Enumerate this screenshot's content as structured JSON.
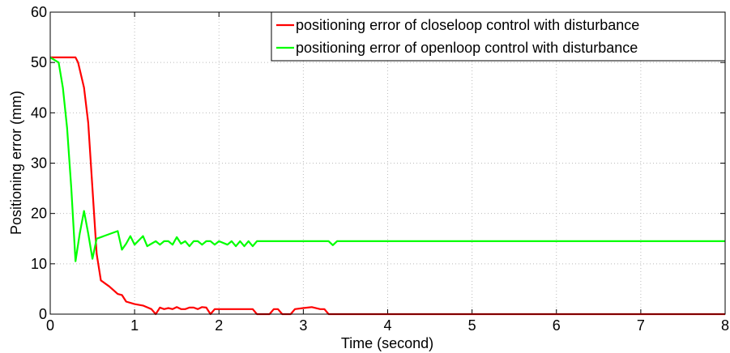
{
  "chart_data": {
    "type": "line",
    "xlabel": "Time (second)",
    "ylabel": "Positioning error (mm)",
    "xlim": [
      0,
      8
    ],
    "ylim": [
      0,
      60
    ],
    "xticks": [
      0,
      1,
      2,
      3,
      4,
      5,
      6,
      7,
      8
    ],
    "yticks": [
      0,
      10,
      20,
      30,
      40,
      50,
      60
    ],
    "grid": true,
    "legend": "northeast",
    "series": [
      {
        "name": "positioning error of closeloop control with disturbance",
        "color": "#ff0000",
        "x": [
          0,
          0.3,
          0.33,
          0.4,
          0.45,
          0.5,
          0.55,
          0.6,
          0.7,
          0.8,
          0.85,
          0.9,
          1.0,
          1.1,
          1.2,
          1.25,
          1.3,
          1.35,
          1.4,
          1.45,
          1.5,
          1.55,
          1.6,
          1.65,
          1.7,
          1.75,
          1.8,
          1.85,
          1.9,
          1.95,
          2.4,
          2.45,
          2.6,
          2.65,
          2.7,
          2.75,
          2.85,
          2.9,
          3.0,
          3.1,
          3.2,
          3.25,
          3.3,
          8
        ],
        "values": [
          51,
          51,
          50,
          45,
          38,
          25,
          12,
          6.7,
          5.5,
          4,
          3.8,
          2.5,
          2,
          1.7,
          1,
          0,
          1.3,
          1,
          1.2,
          1,
          1.4,
          1,
          1,
          1.3,
          1.3,
          1,
          1.4,
          1.3,
          0,
          1,
          1,
          0,
          0,
          1,
          1,
          0,
          0,
          1,
          1.2,
          1.4,
          1,
          1,
          0,
          0
        ]
      },
      {
        "name": "positioning error of openloop control with disturbance",
        "color": "#00ff00",
        "x": [
          0,
          0.1,
          0.15,
          0.2,
          0.25,
          0.3,
          0.35,
          0.4,
          0.45,
          0.5,
          0.55,
          0.8,
          0.85,
          0.9,
          0.95,
          1.0,
          1.1,
          1.15,
          1.2,
          1.25,
          1.3,
          1.35,
          1.4,
          1.45,
          1.5,
          1.55,
          1.6,
          1.65,
          1.7,
          1.75,
          1.8,
          1.85,
          1.9,
          1.95,
          2.0,
          2.1,
          2.15,
          2.2,
          2.25,
          2.3,
          2.35,
          2.4,
          2.45,
          3.3,
          3.35,
          3.4,
          8
        ],
        "values": [
          51,
          50,
          45,
          37,
          25,
          10.5,
          16,
          20.5,
          16,
          11,
          15,
          16.5,
          12.8,
          14,
          15.5,
          13.8,
          15.5,
          13.5,
          14,
          14.5,
          13.8,
          14.5,
          14.5,
          13.8,
          15.3,
          14,
          14.5,
          13.5,
          14.5,
          14.5,
          13.8,
          14.5,
          14.5,
          13.8,
          14.5,
          13.8,
          14.5,
          13.5,
          14.5,
          13.5,
          14.5,
          13.5,
          14.5,
          14.5,
          13.7,
          14.5,
          14.5
        ]
      }
    ]
  }
}
